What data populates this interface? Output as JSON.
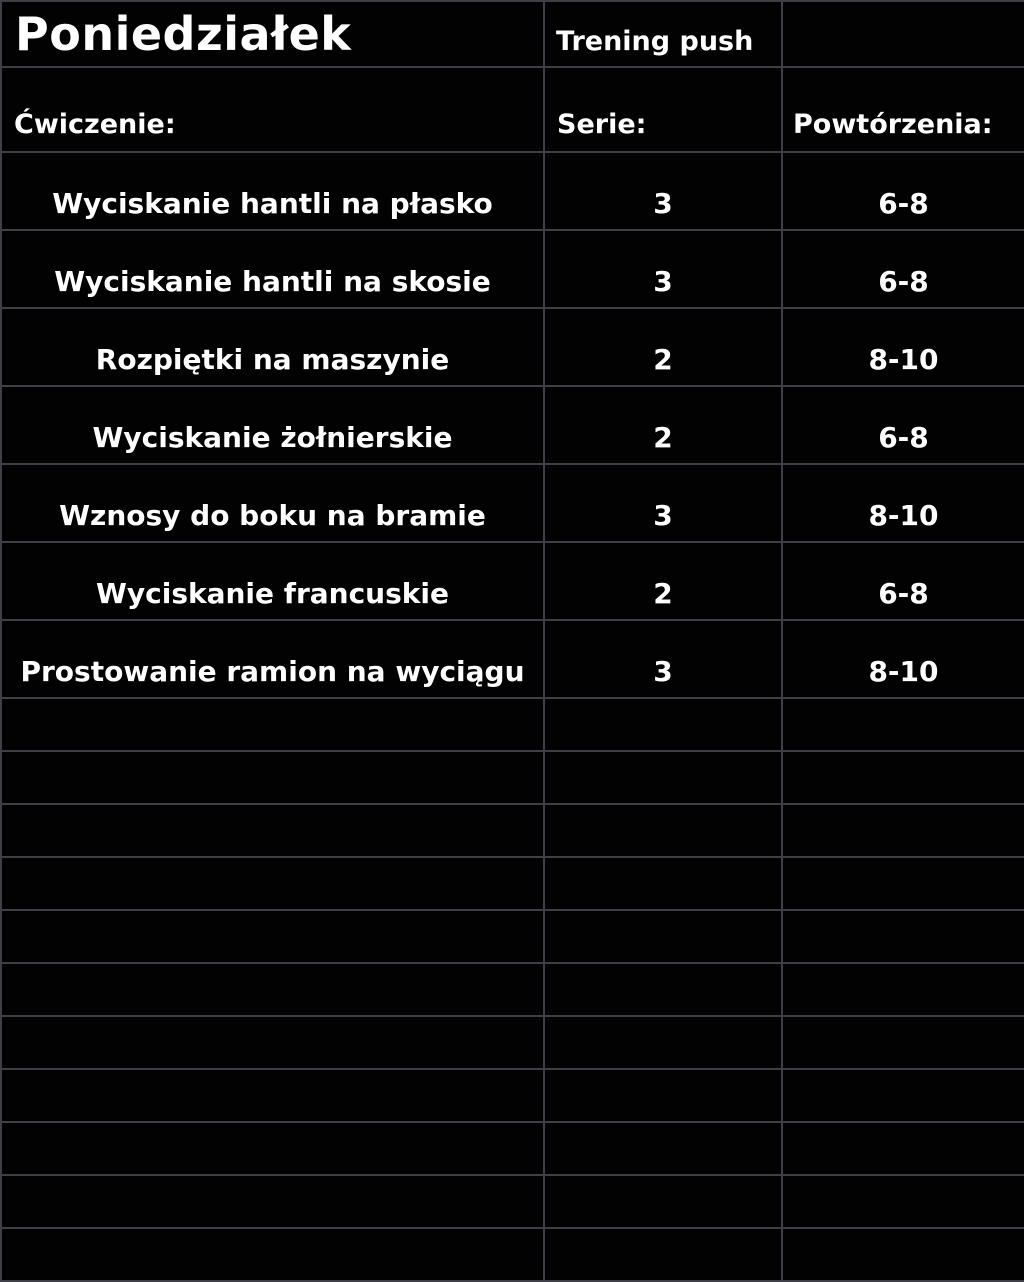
{
  "sheet": {
    "title": "Poniedziałek",
    "workout_type": "Trening push",
    "headers": {
      "exercise": "Ćwiczenie:",
      "sets": "Serie:",
      "reps": "Powtórzenia:"
    },
    "rows": [
      {
        "exercise": "Wyciskanie hantli na płasko",
        "sets": "3",
        "reps": "6-8"
      },
      {
        "exercise": "Wyciskanie hantli na skosie",
        "sets": "3",
        "reps": "6-8"
      },
      {
        "exercise": "Rozpiętki na maszynie",
        "sets": "2",
        "reps": "8-10"
      },
      {
        "exercise": "Wyciskanie żołnierskie",
        "sets": "2",
        "reps": "6-8"
      },
      {
        "exercise": "Wznosy do boku na bramie",
        "sets": "3",
        "reps": "8-10"
      },
      {
        "exercise": "Wyciskanie francuskie",
        "sets": "2",
        "reps": "6-8"
      },
      {
        "exercise": "Prostowanie ramion na wyciągu",
        "sets": "3",
        "reps": "8-10"
      }
    ],
    "empty_row_count": 11,
    "colors": {
      "background": "#020202",
      "grid_line": "#3d4046",
      "text": "#ffffff"
    }
  }
}
